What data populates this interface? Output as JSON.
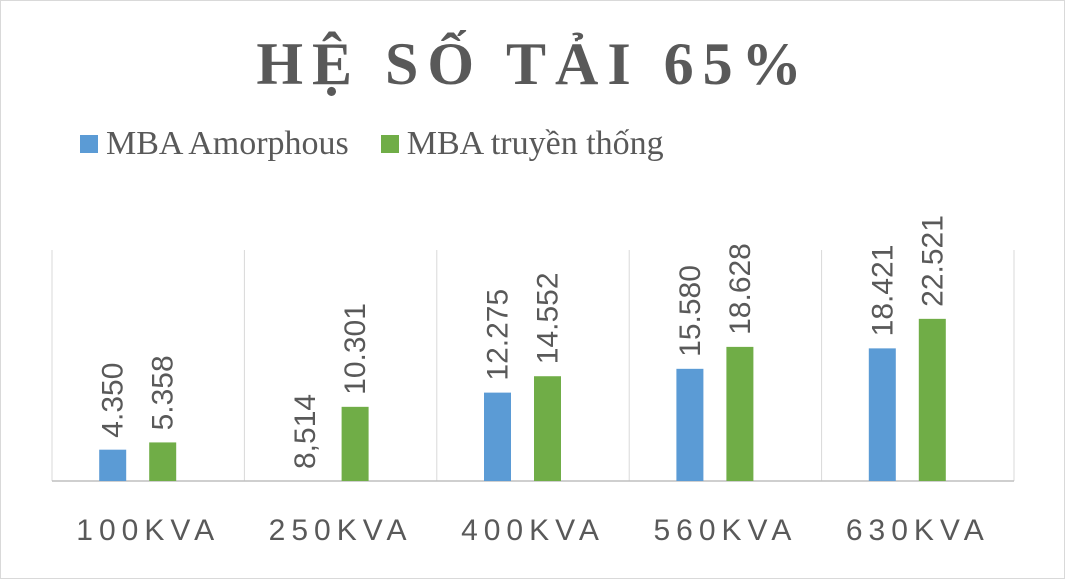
{
  "chart_data": {
    "type": "bar",
    "title": "HỆ SỐ TẢI 65%",
    "categories": [
      "100KVA",
      "250KVA",
      "400KVA",
      "560KVA",
      "630KVA"
    ],
    "series": [
      {
        "name": "MBA Amorphous",
        "color": "#5b9bd5",
        "values": [
          4.35,
          null,
          12.275,
          15.58,
          18.421
        ],
        "labels": [
          "4.350",
          "8,514",
          "12.275",
          "15.580",
          "18.421"
        ]
      },
      {
        "name": "MBA truyền thống",
        "color": "#70ad47",
        "values": [
          5.358,
          10.301,
          14.552,
          18.628,
          22.521
        ],
        "labels": [
          "5.358",
          "10.301",
          "14.552",
          "18.628",
          "22.521"
        ]
      }
    ],
    "ylim": [
      0,
      30
    ],
    "grid": "vertical-category-separators",
    "legend": "top-left"
  }
}
